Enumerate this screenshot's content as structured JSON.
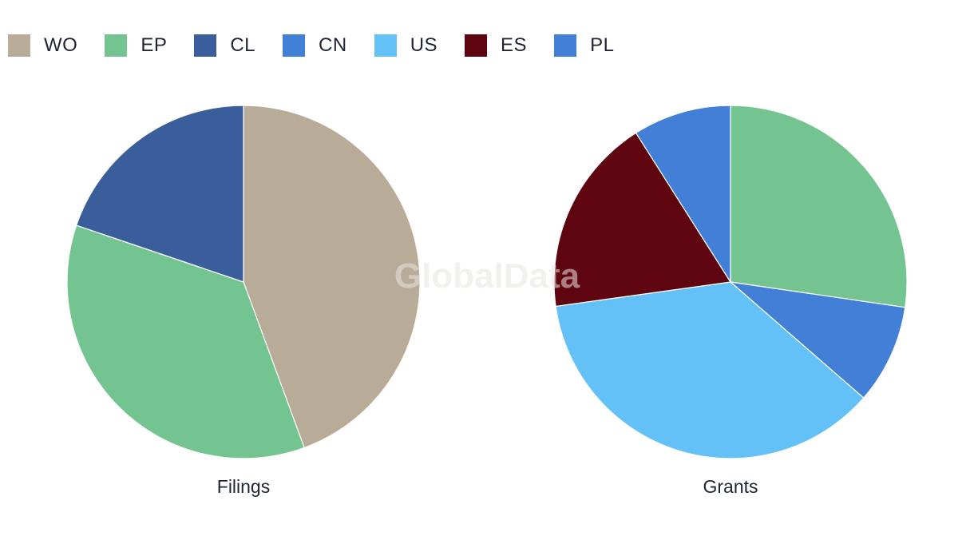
{
  "watermark": "GlobalData",
  "legend": [
    {
      "label": "WO",
      "color": "#b8ab97"
    },
    {
      "label": "EP",
      "color": "#74c491"
    },
    {
      "label": "CL",
      "color": "#3a5e9c"
    },
    {
      "label": "CN",
      "color": "#427fd6"
    },
    {
      "label": "US",
      "color": "#63c1f8"
    },
    {
      "label": "ES",
      "color": "#5e0510"
    },
    {
      "label": "PL",
      "color": "#427fd6"
    }
  ],
  "chart_data": [
    {
      "type": "pie",
      "title": "Filings",
      "slices": [
        {
          "label": "WO",
          "value": 44.4,
          "color": "#b8ab97"
        },
        {
          "label": "EP",
          "value": 35.8,
          "color": "#74c491"
        },
        {
          "label": "CL",
          "value": 19.8,
          "color": "#3a5e9c"
        }
      ]
    },
    {
      "type": "pie",
      "title": "Grants",
      "slices": [
        {
          "label": "EP",
          "value": 27.3,
          "color": "#74c491"
        },
        {
          "label": "CN",
          "value": 9.1,
          "color": "#427fd6"
        },
        {
          "label": "US",
          "value": 36.4,
          "color": "#63c1f8"
        },
        {
          "label": "ES",
          "value": 18.2,
          "color": "#5e0510"
        },
        {
          "label": "PL",
          "value": 9.0,
          "color": "#427fd6"
        }
      ]
    }
  ]
}
